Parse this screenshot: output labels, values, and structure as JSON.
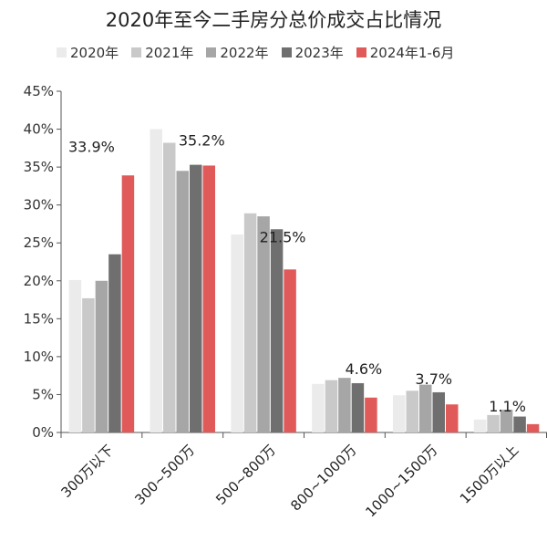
{
  "chart_data": {
    "type": "bar",
    "title": "2020年至今二手房分总价成交占比情况",
    "xlabel": "",
    "ylabel": "",
    "ylim": [
      0,
      45
    ],
    "yticks": [
      "0%",
      "5%",
      "10%",
      "15%",
      "20%",
      "25%",
      "30%",
      "35%",
      "40%",
      "45%"
    ],
    "grid": false,
    "legend_position": "top",
    "categories": [
      "300万以下",
      "300~500万",
      "500~800万",
      "800~1000万",
      "1000~1500万",
      "1500万以上"
    ],
    "series": [
      {
        "name": "2020年",
        "color": "#ebebeb",
        "values": [
          20.1,
          40.0,
          26.1,
          6.4,
          4.9,
          1.7
        ]
      },
      {
        "name": "2021年",
        "color": "#c9c9c9",
        "values": [
          17.7,
          38.2,
          28.9,
          6.9,
          5.5,
          2.3
        ]
      },
      {
        "name": "2022年",
        "color": "#a6a6a6",
        "values": [
          20.0,
          34.5,
          28.5,
          7.2,
          6.3,
          3.0
        ]
      },
      {
        "name": "2023年",
        "color": "#6f6f6f",
        "values": [
          23.5,
          35.3,
          26.8,
          6.5,
          5.3,
          2.1
        ]
      },
      {
        "name": "2024年1-6月",
        "color": "#e05a5a",
        "values": [
          33.9,
          35.2,
          21.5,
          4.6,
          3.7,
          1.1
        ]
      }
    ],
    "data_labels": [
      "33.9%",
      "35.2%",
      "21.5%",
      "4.6%",
      "3.7%",
      "1.1%"
    ]
  }
}
